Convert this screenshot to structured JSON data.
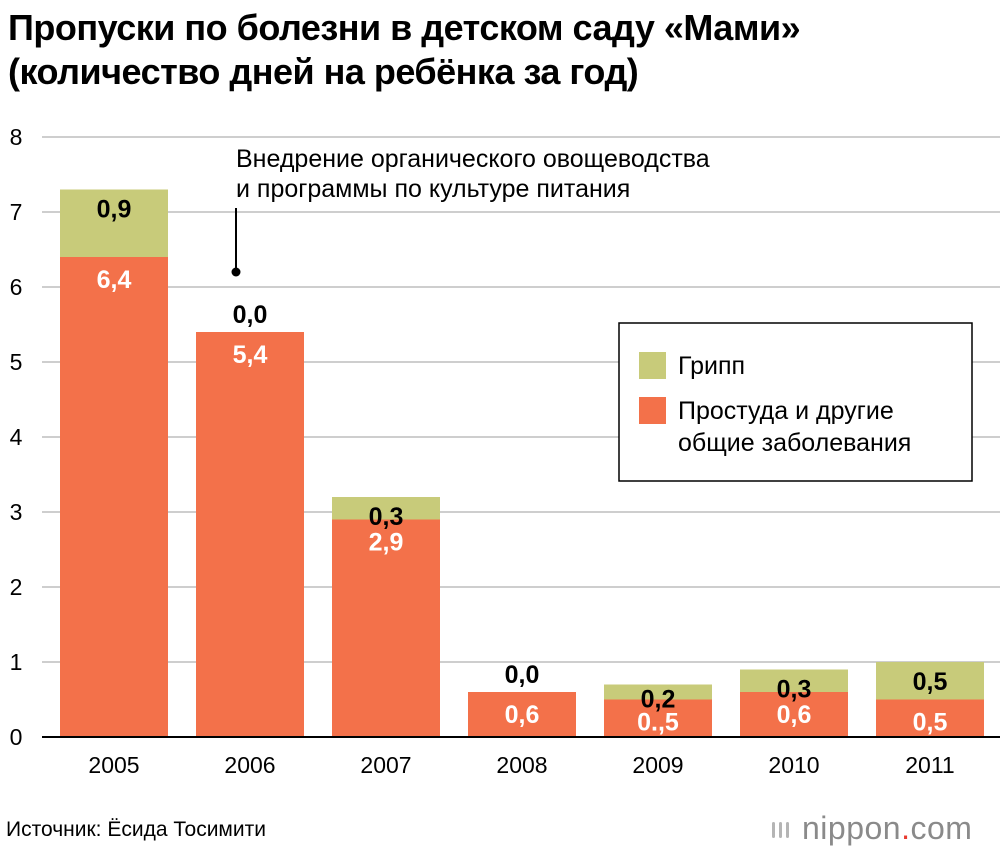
{
  "title_line1": "Пропуски по болезни в детском саду «Мами»",
  "title_line2": "(количество дней на ребёнка за год)",
  "source": "Источник: Ёсида Тосимити",
  "logo": {
    "text": "nippon",
    "dot": ".",
    "suffix": "com",
    "accent": "#e83a2f"
  },
  "chart_data": {
    "type": "bar",
    "stacked": true,
    "categories": [
      "2005",
      "2006",
      "2007",
      "2008",
      "2009",
      "2010",
      "2011"
    ],
    "series": [
      {
        "name": "Простуда и другие общие заболевания",
        "values": [
          6.4,
          5.4,
          2.9,
          0.6,
          0.5,
          0.6,
          0.5
        ],
        "labels": [
          "6,4",
          "5,4",
          "2,9",
          "0,6",
          "0.,5",
          "0,6",
          "0,5"
        ],
        "color": "#f3714a"
      },
      {
        "name": "Грипп",
        "values": [
          0.9,
          0.0,
          0.3,
          0.0,
          0.2,
          0.3,
          0.5
        ],
        "labels": [
          "0,9",
          "0,0",
          "0,3",
          "0,0",
          "0,2",
          "0,3",
          "0,5"
        ],
        "color": "#c8cb7a"
      }
    ],
    "yticks": [
      "0",
      "1",
      "2",
      "3",
      "4",
      "5",
      "6",
      "7",
      "8"
    ],
    "ylim": [
      0,
      8
    ],
    "grid": true,
    "legend_position": "right",
    "legend": [
      {
        "series": 1,
        "lines": [
          "Грипп"
        ]
      },
      {
        "series": 0,
        "lines": [
          "Простуда и другие",
          "общие заболевания"
        ]
      }
    ],
    "annotation": {
      "lines": [
        "Внедрение органического овощеводства",
        "и программы по культуре питания"
      ],
      "category": "2006",
      "y": 6.2
    }
  }
}
